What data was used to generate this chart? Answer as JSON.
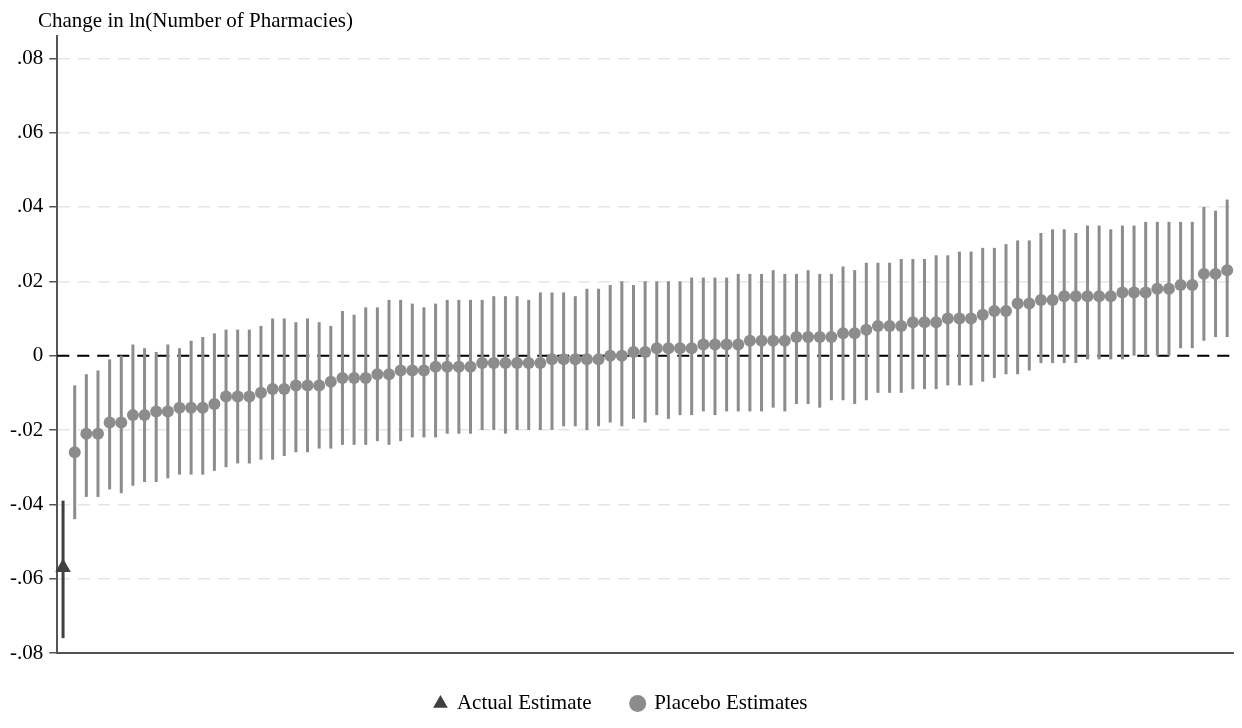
{
  "chart_data": {
    "type": "scatter",
    "ylabel": "Change in ln(Number of Pharmacies)",
    "categories": [
      null,
      null,
      null,
      null,
      null,
      null,
      null,
      null,
      null,
      null,
      null,
      null,
      null,
      null,
      null,
      null,
      null,
      null,
      null,
      null,
      null,
      null,
      null,
      null,
      null,
      null,
      null,
      null,
      null,
      null,
      null,
      null,
      null,
      null,
      null,
      null,
      null,
      null,
      null,
      null,
      null,
      null,
      null,
      null,
      null,
      null,
      null,
      null,
      null,
      null,
      null,
      null,
      null,
      null,
      null,
      null,
      null,
      null,
      null,
      null,
      null,
      null,
      null,
      null,
      null,
      null,
      null,
      null,
      null,
      null,
      null,
      null,
      null,
      null,
      null,
      null,
      null,
      null,
      null,
      null,
      null,
      null,
      null,
      null,
      null,
      null,
      null,
      null,
      null,
      null,
      null,
      null,
      null,
      null,
      null,
      null,
      null,
      null,
      null,
      null,
      null
    ],
    "series": [
      {
        "name": "Actual Estimate",
        "marker": "triangle",
        "color": "#404040",
        "values": [
          -0.057,
          null,
          null,
          null,
          null,
          null,
          null,
          null,
          null,
          null,
          null,
          null,
          null,
          null,
          null,
          null,
          null,
          null,
          null,
          null,
          null,
          null,
          null,
          null,
          null,
          null,
          null,
          null,
          null,
          null,
          null,
          null,
          null,
          null,
          null,
          null,
          null,
          null,
          null,
          null,
          null,
          null,
          null,
          null,
          null,
          null,
          null,
          null,
          null,
          null,
          null,
          null,
          null,
          null,
          null,
          null,
          null,
          null,
          null,
          null,
          null,
          null,
          null,
          null,
          null,
          null,
          null,
          null,
          null,
          null,
          null,
          null,
          null,
          null,
          null,
          null,
          null,
          null,
          null,
          null,
          null,
          null,
          null,
          null,
          null,
          null,
          null,
          null,
          null,
          null,
          null,
          null,
          null,
          null,
          null,
          null,
          null,
          null,
          null,
          null,
          null
        ],
        "errors": [
          [
            -0.076,
            -0.039
          ],
          null,
          null,
          null,
          null,
          null,
          null,
          null,
          null,
          null,
          null,
          null,
          null,
          null,
          null,
          null,
          null,
          null,
          null,
          null,
          null,
          null,
          null,
          null,
          null,
          null,
          null,
          null,
          null,
          null,
          null,
          null,
          null,
          null,
          null,
          null,
          null,
          null,
          null,
          null,
          null,
          null,
          null,
          null,
          null,
          null,
          null,
          null,
          null,
          null,
          null,
          null,
          null,
          null,
          null,
          null,
          null,
          null,
          null,
          null,
          null,
          null,
          null,
          null,
          null,
          null,
          null,
          null,
          null,
          null,
          null,
          null,
          null,
          null,
          null,
          null,
          null,
          null,
          null,
          null,
          null,
          null,
          null,
          null,
          null,
          null,
          null,
          null,
          null,
          null,
          null,
          null,
          null,
          null,
          null,
          null,
          null,
          null,
          null,
          null,
          null
        ]
      },
      {
        "name": "Placebo Estimates",
        "marker": "circle",
        "color": "#8c8c8c",
        "values": [
          null,
          -0.026,
          -0.021,
          -0.021,
          -0.018,
          -0.018,
          -0.016,
          -0.016,
          -0.015,
          -0.015,
          -0.014,
          -0.014,
          -0.014,
          -0.013,
          -0.011,
          -0.011,
          -0.011,
          -0.01,
          -0.009,
          -0.009,
          -0.008,
          -0.008,
          -0.008,
          -0.007,
          -0.006,
          -0.006,
          -0.006,
          -0.005,
          -0.005,
          -0.004,
          -0.004,
          -0.004,
          -0.003,
          -0.003,
          -0.003,
          -0.003,
          -0.002,
          -0.002,
          -0.002,
          -0.002,
          -0.002,
          -0.002,
          -0.001,
          -0.001,
          -0.001,
          -0.001,
          -0.001,
          0,
          0,
          0.001,
          0.001,
          0.002,
          0.002,
          0.002,
          0.002,
          0.003,
          0.003,
          0.003,
          0.003,
          0.004,
          0.004,
          0.004,
          0.004,
          0.005,
          0.005,
          0.005,
          0.005,
          0.006,
          0.006,
          0.007,
          0.008,
          0.008,
          0.008,
          0.009,
          0.009,
          0.009,
          0.01,
          0.01,
          0.01,
          0.011,
          0.012,
          0.012,
          0.014,
          0.014,
          0.015,
          0.015,
          0.016,
          0.016,
          0.016,
          0.016,
          0.016,
          0.017,
          0.017,
          0.017,
          0.018,
          0.018,
          0.019,
          0.019,
          0.022,
          0.022,
          0.023
        ],
        "errors": [
          null,
          [
            -0.044,
            -0.008
          ],
          [
            -0.038,
            -0.005
          ],
          [
            -0.038,
            -0.004
          ],
          [
            -0.036,
            -0.001
          ],
          [
            -0.037,
            0
          ],
          [
            -0.035,
            0.003
          ],
          [
            -0.034,
            0.002
          ],
          [
            -0.034,
            0.001
          ],
          [
            -0.033,
            0.003
          ],
          [
            -0.032,
            0.002
          ],
          [
            -0.032,
            0.004
          ],
          [
            -0.032,
            0.005
          ],
          [
            -0.031,
            0.006
          ],
          [
            -0.03,
            0.007
          ],
          [
            -0.029,
            0.007
          ],
          [
            -0.029,
            0.007
          ],
          [
            -0.028,
            0.008
          ],
          [
            -0.028,
            0.01
          ],
          [
            -0.027,
            0.01
          ],
          [
            -0.026,
            0.009
          ],
          [
            -0.026,
            0.01
          ],
          [
            -0.025,
            0.009
          ],
          [
            -0.025,
            0.008
          ],
          [
            -0.024,
            0.012
          ],
          [
            -0.024,
            0.011
          ],
          [
            -0.024,
            0.013
          ],
          [
            -0.023,
            0.013
          ],
          [
            -0.024,
            0.015
          ],
          [
            -0.023,
            0.015
          ],
          [
            -0.022,
            0.014
          ],
          [
            -0.022,
            0.013
          ],
          [
            -0.022,
            0.014
          ],
          [
            -0.021,
            0.015
          ],
          [
            -0.021,
            0.015
          ],
          [
            -0.021,
            0.015
          ],
          [
            -0.02,
            0.015
          ],
          [
            -0.02,
            0.016
          ],
          [
            -0.021,
            0.016
          ],
          [
            -0.02,
            0.016
          ],
          [
            -0.02,
            0.015
          ],
          [
            -0.02,
            0.017
          ],
          [
            -0.02,
            0.017
          ],
          [
            -0.019,
            0.017
          ],
          [
            -0.019,
            0.016
          ],
          [
            -0.02,
            0.018
          ],
          [
            -0.019,
            0.018
          ],
          [
            -0.018,
            0.019
          ],
          [
            -0.019,
            0.02
          ],
          [
            -0.017,
            0.019
          ],
          [
            -0.018,
            0.02
          ],
          [
            -0.016,
            0.02
          ],
          [
            -0.017,
            0.02
          ],
          [
            -0.016,
            0.02
          ],
          [
            -0.016,
            0.021
          ],
          [
            -0.015,
            0.021
          ],
          [
            -0.016,
            0.021
          ],
          [
            -0.015,
            0.021
          ],
          [
            -0.015,
            0.022
          ],
          [
            -0.015,
            0.022
          ],
          [
            -0.015,
            0.022
          ],
          [
            -0.014,
            0.023
          ],
          [
            -0.015,
            0.022
          ],
          [
            -0.013,
            0.022
          ],
          [
            -0.013,
            0.023
          ],
          [
            -0.014,
            0.022
          ],
          [
            -0.012,
            0.022
          ],
          [
            -0.012,
            0.024
          ],
          [
            -0.013,
            0.023
          ],
          [
            -0.012,
            0.025
          ],
          [
            -0.01,
            0.025
          ],
          [
            -0.01,
            0.025
          ],
          [
            -0.01,
            0.026
          ],
          [
            -0.009,
            0.026
          ],
          [
            -0.009,
            0.026
          ],
          [
            -0.009,
            0.027
          ],
          [
            -0.008,
            0.027
          ],
          [
            -0.008,
            0.028
          ],
          [
            -0.008,
            0.028
          ],
          [
            -0.007,
            0.029
          ],
          [
            -0.006,
            0.029
          ],
          [
            -0.005,
            0.03
          ],
          [
            -0.005,
            0.031
          ],
          [
            -0.004,
            0.031
          ],
          [
            -0.002,
            0.033
          ],
          [
            -0.002,
            0.034
          ],
          [
            -0.002,
            0.034
          ],
          [
            -0.002,
            0.033
          ],
          [
            -0.001,
            0.035
          ],
          [
            -0.001,
            0.035
          ],
          [
            -0.001,
            0.034
          ],
          [
            -0.001,
            0.035
          ],
          [
            0,
            0.035
          ],
          [
            0,
            0.036
          ],
          [
            0,
            0.036
          ],
          [
            0,
            0.036
          ],
          [
            0.002,
            0.036
          ],
          [
            0.002,
            0.036
          ],
          [
            0.004,
            0.04
          ],
          [
            0.005,
            0.039
          ],
          [
            0.005,
            0.042
          ]
        ]
      }
    ],
    "ylim": [
      -0.08,
      0.086
    ],
    "yticks": [
      {
        "value": -0.08,
        "label": "-.08"
      },
      {
        "value": -0.06,
        "label": "-.06"
      },
      {
        "value": -0.04,
        "label": "-.04"
      },
      {
        "value": -0.02,
        "label": "-.02"
      },
      0,
      {
        "value": 0.02,
        "label": ".02"
      },
      {
        "value": 0.04,
        "label": ".04"
      },
      {
        "value": 0.06,
        "label": ".06"
      },
      {
        "value": 0.08,
        "label": ".08"
      }
    ],
    "ref_lines": [
      {
        "axis": "y",
        "value": 0,
        "color": "#000000",
        "line_style": "dashed"
      }
    ],
    "grid": "y",
    "legend": "bottom"
  }
}
